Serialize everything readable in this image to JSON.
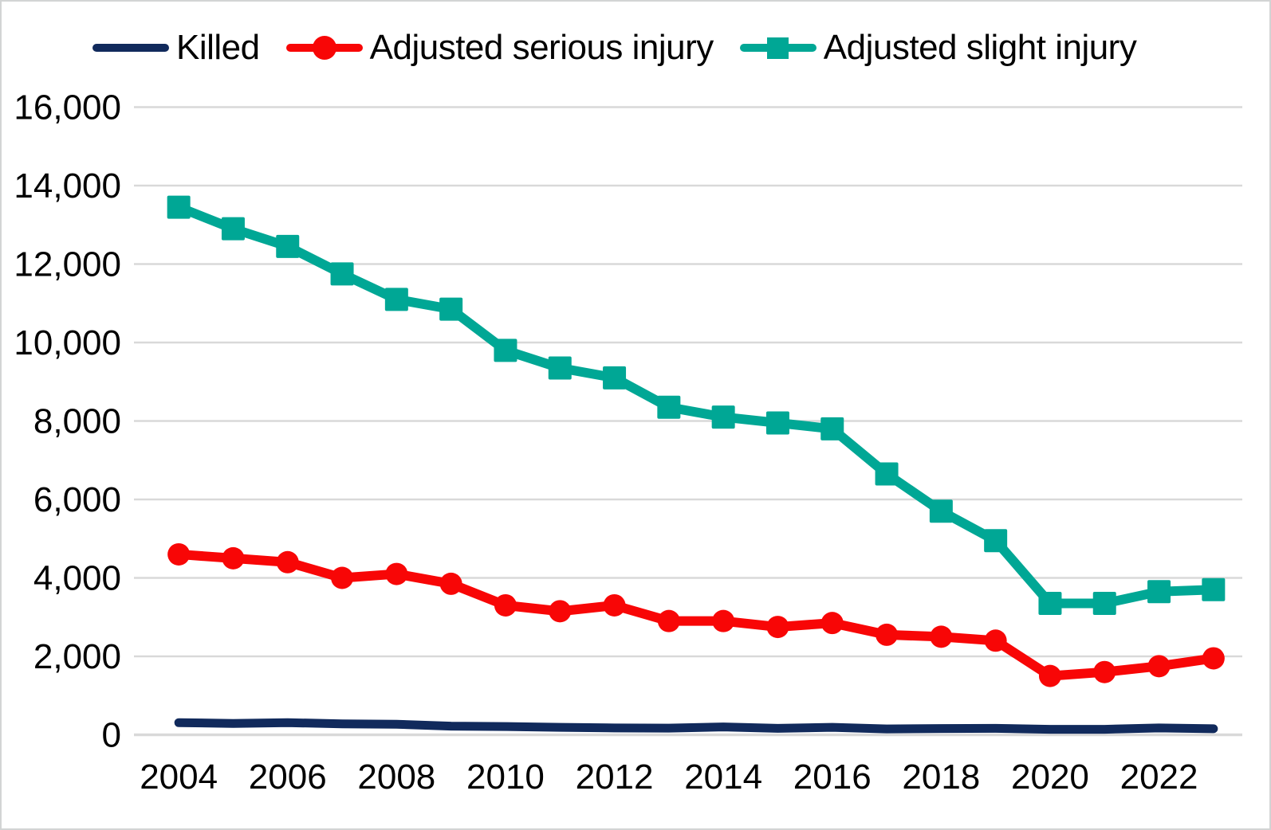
{
  "colors": {
    "background": "#ffffff",
    "frame_border": "#d2d4d4",
    "gridline": "#d9d9d9",
    "axis_line": "#d9d9d9",
    "killed": "#112a5c",
    "serious": "#f80606",
    "slight": "#00a795",
    "text": "#000000"
  },
  "chart_data": {
    "type": "line",
    "title": "",
    "xlabel": "",
    "ylabel": "",
    "grid": "horizontal",
    "legend_position": "top",
    "x": [
      2004,
      2005,
      2006,
      2007,
      2008,
      2009,
      2010,
      2011,
      2012,
      2013,
      2014,
      2015,
      2016,
      2017,
      2018,
      2019,
      2020,
      2021,
      2022,
      2023
    ],
    "x_tick_labels": [
      "2004",
      "2006",
      "2008",
      "2010",
      "2012",
      "2014",
      "2016",
      "2018",
      "2020",
      "2022"
    ],
    "ylim": [
      0,
      16000
    ],
    "y_ticks": [
      0,
      2000,
      4000,
      6000,
      8000,
      10000,
      12000,
      14000,
      16000
    ],
    "y_tick_labels": [
      "0",
      "2,000",
      "4,000",
      "6,000",
      "8,000",
      "10,000",
      "12,000",
      "14,000",
      "16,000"
    ],
    "series": [
      {
        "name": "Killed",
        "color": "#112a5c",
        "marker": "none",
        "values": [
          310,
          290,
          310,
          280,
          270,
          220,
          210,
          190,
          175,
          170,
          200,
          165,
          190,
          150,
          160,
          165,
          140,
          140,
          175,
          155
        ]
      },
      {
        "name": "Adjusted serious injury",
        "color": "#f80606",
        "marker": "circle",
        "values": [
          4600,
          4500,
          4400,
          4000,
          4100,
          3850,
          3300,
          3150,
          3300,
          2900,
          2900,
          2750,
          2850,
          2550,
          2500,
          2400,
          1500,
          1600,
          1750,
          1950
        ]
      },
      {
        "name": "Adjusted slight injury",
        "color": "#00a795",
        "marker": "square",
        "values": [
          13450,
          12900,
          12450,
          11750,
          11100,
          10850,
          9800,
          9350,
          9100,
          8350,
          8100,
          7950,
          7800,
          6650,
          5700,
          4950,
          3350,
          3350,
          3650,
          3700
        ]
      }
    ]
  }
}
